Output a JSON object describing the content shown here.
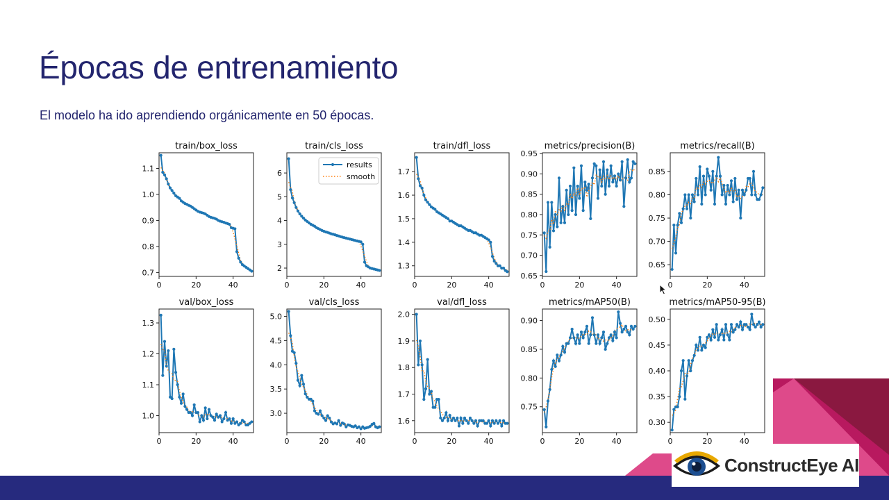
{
  "slide": {
    "title": "Épocas de entrenamiento",
    "subtitle": "El modelo ha ido aprendiendo orgánicamente en 50 épocas."
  },
  "logo": {
    "text": "ConstructEye AI",
    "icon": "eye-icon"
  },
  "colors": {
    "series": "#1f77b4",
    "smooth": "#ff7f0e",
    "title": "#23256e",
    "bar": "#262a7e",
    "magenta": "#b8195f",
    "pink": "#de4a8a",
    "dark_red": "#8a1840"
  },
  "chart_data": [
    {
      "type": "line",
      "title": "train/box_loss",
      "xlim": [
        0,
        51
      ],
      "ylim": [
        0.685,
        1.16
      ],
      "xticks": [
        0,
        20,
        40
      ],
      "yticks": [
        0.7,
        0.8,
        0.9,
        1.0,
        1.1
      ],
      "ytick_labels": [
        "0.7",
        "0.8",
        "0.9",
        "1.0",
        "1.1"
      ],
      "legend": null,
      "series": [
        {
          "name": "results",
          "values": [
            1.15,
            1.085,
            1.075,
            1.06,
            1.04,
            1.025,
            1.015,
            1.005,
            0.995,
            0.99,
            0.985,
            0.975,
            0.97,
            0.965,
            0.962,
            0.958,
            0.955,
            0.95,
            0.945,
            0.94,
            0.935,
            0.932,
            0.93,
            0.928,
            0.925,
            0.92,
            0.915,
            0.912,
            0.91,
            0.908,
            0.905,
            0.9,
            0.897,
            0.895,
            0.893,
            0.89,
            0.888,
            0.885,
            0.872,
            0.87,
            0.868,
            0.78,
            0.755,
            0.74,
            0.73,
            0.725,
            0.72,
            0.715,
            0.71,
            0.705
          ]
        }
      ]
    },
    {
      "type": "line",
      "title": "train/cls_loss",
      "xlim": [
        0,
        51
      ],
      "ylim": [
        1.65,
        6.85
      ],
      "xticks": [
        0,
        20,
        40
      ],
      "yticks": [
        2,
        3,
        4,
        5,
        6
      ],
      "ytick_labels": [
        "2",
        "3",
        "4",
        "5",
        "6"
      ],
      "legend": {
        "results": "results",
        "smooth": "smooth"
      },
      "series": [
        {
          "name": "results",
          "values": [
            6.6,
            5.3,
            4.95,
            4.75,
            4.55,
            4.4,
            4.28,
            4.18,
            4.1,
            4.02,
            3.96,
            3.9,
            3.84,
            3.8,
            3.76,
            3.7,
            3.66,
            3.62,
            3.58,
            3.55,
            3.52,
            3.5,
            3.47,
            3.44,
            3.42,
            3.4,
            3.37,
            3.35,
            3.32,
            3.3,
            3.28,
            3.26,
            3.24,
            3.22,
            3.2,
            3.18,
            3.16,
            3.14,
            3.12,
            3.1,
            3.0,
            2.25,
            2.1,
            2.05,
            2.0,
            1.98,
            1.96,
            1.94,
            1.92,
            1.9
          ]
        }
      ]
    },
    {
      "type": "line",
      "title": "train/dfl_loss",
      "xlim": [
        0,
        51
      ],
      "ylim": [
        1.255,
        1.78
      ],
      "xticks": [
        0,
        20,
        40
      ],
      "yticks": [
        1.3,
        1.4,
        1.5,
        1.6,
        1.7
      ],
      "ytick_labels": [
        "1.3",
        "1.4",
        "1.5",
        "1.6",
        "1.7"
      ],
      "legend": null,
      "series": [
        {
          "name": "results",
          "values": [
            1.76,
            1.67,
            1.64,
            1.63,
            1.6,
            1.58,
            1.57,
            1.56,
            1.55,
            1.545,
            1.54,
            1.53,
            1.525,
            1.52,
            1.515,
            1.51,
            1.505,
            1.5,
            1.49,
            1.49,
            1.485,
            1.48,
            1.475,
            1.47,
            1.47,
            1.465,
            1.46,
            1.455,
            1.45,
            1.45,
            1.445,
            1.44,
            1.44,
            1.435,
            1.43,
            1.43,
            1.425,
            1.42,
            1.415,
            1.41,
            1.4,
            1.34,
            1.32,
            1.31,
            1.3,
            1.3,
            1.29,
            1.29,
            1.28,
            1.275
          ]
        }
      ]
    },
    {
      "type": "line",
      "title": "metrics/precision(B)",
      "xlim": [
        0,
        51
      ],
      "ylim": [
        0.648,
        0.952
      ],
      "xticks": [
        0,
        20,
        40
      ],
      "yticks": [
        0.65,
        0.7,
        0.75,
        0.8,
        0.85,
        0.9,
        0.95
      ],
      "ytick_labels": [
        "0.65",
        "0.70",
        "0.75",
        "0.80",
        "0.85",
        "0.90",
        "0.95"
      ],
      "legend": null,
      "series": [
        {
          "name": "results",
          "values": [
            0.755,
            0.66,
            0.83,
            0.72,
            0.83,
            0.76,
            0.8,
            0.77,
            0.89,
            0.78,
            0.82,
            0.78,
            0.86,
            0.8,
            0.87,
            0.81,
            0.915,
            0.8,
            0.87,
            0.84,
            0.92,
            0.81,
            0.88,
            0.86,
            0.875,
            0.79,
            0.89,
            0.925,
            0.92,
            0.84,
            0.91,
            0.87,
            0.93,
            0.85,
            0.91,
            0.87,
            0.92,
            0.88,
            0.895,
            0.87,
            0.9,
            0.885,
            0.93,
            0.82,
            0.89,
            0.935,
            0.88,
            0.89,
            0.93,
            0.925
          ]
        }
      ]
    },
    {
      "type": "line",
      "title": "metrics/recall(B)",
      "xlim": [
        0,
        51
      ],
      "ylim": [
        0.625,
        0.89
      ],
      "xticks": [
        0,
        20,
        40
      ],
      "yticks": [
        0.65,
        0.7,
        0.75,
        0.8,
        0.85
      ],
      "ytick_labels": [
        "0.65",
        "0.70",
        "0.75",
        "0.80",
        "0.85"
      ],
      "legend": null,
      "series": [
        {
          "name": "results",
          "values": [
            0.64,
            0.735,
            0.675,
            0.735,
            0.76,
            0.74,
            0.77,
            0.8,
            0.77,
            0.8,
            0.75,
            0.8,
            0.785,
            0.835,
            0.8,
            0.86,
            0.78,
            0.84,
            0.8,
            0.855,
            0.84,
            0.81,
            0.85,
            0.78,
            0.84,
            0.88,
            0.84,
            0.8,
            0.82,
            0.78,
            0.82,
            0.8,
            0.83,
            0.785,
            0.835,
            0.79,
            0.81,
            0.75,
            0.81,
            0.8,
            0.81,
            0.835,
            0.835,
            0.8,
            0.85,
            0.8,
            0.79,
            0.79,
            0.8,
            0.815
          ]
        }
      ]
    },
    {
      "type": "line",
      "title": "val/box_loss",
      "xlim": [
        0,
        51
      ],
      "ylim": [
        0.945,
        1.345
      ],
      "xticks": [
        0,
        20,
        40
      ],
      "yticks": [
        1.0,
        1.1,
        1.2,
        1.3
      ],
      "ytick_labels": [
        "1.0",
        "1.1",
        "1.2",
        "1.3"
      ],
      "legend": null,
      "series": [
        {
          "name": "results",
          "values": [
            1.325,
            1.13,
            1.24,
            1.16,
            1.21,
            1.06,
            1.055,
            1.215,
            1.14,
            1.1,
            1.06,
            1.04,
            1.07,
            1.03,
            1.02,
            1.01,
            1.01,
            1.0,
            1.035,
            1.01,
            1.01,
            0.98,
            1.0,
            0.985,
            1.025,
            0.99,
            1.02,
            1.0,
            0.995,
            0.985,
            1.005,
            0.995,
            1.0,
            0.98,
            0.99,
            1.01,
            0.985,
            0.99,
            0.975,
            0.99,
            0.975,
            0.98,
            0.97,
            0.975,
            0.985,
            0.98,
            0.97,
            0.97,
            0.975,
            0.98
          ]
        }
      ]
    },
    {
      "type": "line",
      "title": "val/cls_loss",
      "xlim": [
        0,
        51
      ],
      "ylim": [
        2.6,
        5.15
      ],
      "xticks": [
        0,
        20,
        40
      ],
      "yticks": [
        3.0,
        3.5,
        4.0,
        4.5,
        5.0
      ],
      "ytick_labels": [
        "3.0",
        "3.5",
        "4.0",
        "4.5",
        "5.0"
      ],
      "legend": null,
      "series": [
        {
          "name": "results",
          "values": [
            5.1,
            4.6,
            4.28,
            4.25,
            4.03,
            3.68,
            3.57,
            3.78,
            3.6,
            3.4,
            3.33,
            3.29,
            3.29,
            3.25,
            3.05,
            3.0,
            2.98,
            3.05,
            2.95,
            2.9,
            2.85,
            2.95,
            2.9,
            2.82,
            2.78,
            2.8,
            2.78,
            2.85,
            2.75,
            2.8,
            2.78,
            2.72,
            2.76,
            2.75,
            2.73,
            2.72,
            2.74,
            2.7,
            2.72,
            2.68,
            2.72,
            2.69,
            2.7,
            2.71,
            2.73,
            2.77,
            2.79,
            2.72,
            2.7,
            2.72
          ]
        }
      ]
    },
    {
      "type": "line",
      "title": "val/dfl_loss",
      "xlim": [
        0,
        51
      ],
      "ylim": [
        1.555,
        2.02
      ],
      "xticks": [
        0,
        20,
        40
      ],
      "yticks": [
        1.6,
        1.7,
        1.8,
        1.9,
        2.0
      ],
      "ytick_labels": [
        "1.6",
        "1.7",
        "1.8",
        "1.9",
        "2.0"
      ],
      "legend": null,
      "series": [
        {
          "name": "results",
          "values": [
            2.0,
            1.81,
            1.9,
            1.81,
            1.68,
            1.72,
            1.83,
            1.7,
            1.71,
            1.65,
            1.65,
            1.68,
            1.68,
            1.61,
            1.6,
            1.61,
            1.63,
            1.6,
            1.62,
            1.6,
            1.61,
            1.6,
            1.61,
            1.58,
            1.61,
            1.59,
            1.61,
            1.6,
            1.59,
            1.61,
            1.6,
            1.59,
            1.6,
            1.58,
            1.6,
            1.6,
            1.6,
            1.59,
            1.59,
            1.6,
            1.58,
            1.6,
            1.59,
            1.6,
            1.59,
            1.6,
            1.58,
            1.6,
            1.59,
            1.59
          ]
        }
      ]
    },
    {
      "type": "line",
      "title": "metrics/mAP50(B)",
      "xlim": [
        0,
        51
      ],
      "ylim": [
        0.705,
        0.92
      ],
      "xticks": [
        0,
        20,
        40
      ],
      "yticks": [
        0.75,
        0.8,
        0.85,
        0.9
      ],
      "ytick_labels": [
        "0.75",
        "0.80",
        "0.85",
        "0.90"
      ],
      "legend": null,
      "series": [
        {
          "name": "results",
          "values": [
            0.745,
            0.715,
            0.76,
            0.78,
            0.815,
            0.83,
            0.82,
            0.84,
            0.83,
            0.84,
            0.855,
            0.845,
            0.86,
            0.86,
            0.87,
            0.885,
            0.87,
            0.86,
            0.875,
            0.86,
            0.88,
            0.87,
            0.88,
            0.89,
            0.86,
            0.875,
            0.905,
            0.875,
            0.86,
            0.875,
            0.86,
            0.87,
            0.88,
            0.85,
            0.86,
            0.87,
            0.875,
            0.865,
            0.88,
            0.87,
            0.915,
            0.895,
            0.88,
            0.885,
            0.89,
            0.88,
            0.875,
            0.89,
            0.885,
            0.89
          ]
        }
      ]
    },
    {
      "type": "line",
      "title": "metrics/mAP50-95(B)",
      "xlim": [
        0,
        51
      ],
      "ylim": [
        0.28,
        0.52
      ],
      "xticks": [
        0,
        20,
        40
      ],
      "yticks": [
        0.3,
        0.35,
        0.4,
        0.45,
        0.5
      ],
      "ytick_labels": [
        "0.30",
        "0.35",
        "0.40",
        "0.45",
        "0.50"
      ],
      "legend": null,
      "series": [
        {
          "name": "results",
          "values": [
            0.285,
            0.325,
            0.33,
            0.33,
            0.35,
            0.4,
            0.42,
            0.345,
            0.39,
            0.42,
            0.4,
            0.42,
            0.43,
            0.45,
            0.44,
            0.465,
            0.44,
            0.45,
            0.445,
            0.465,
            0.47,
            0.46,
            0.48,
            0.465,
            0.49,
            0.46,
            0.47,
            0.48,
            0.46,
            0.49,
            0.47,
            0.46,
            0.49,
            0.475,
            0.48,
            0.49,
            0.485,
            0.495,
            0.48,
            0.49,
            0.49,
            0.485,
            0.48,
            0.51,
            0.49,
            0.485,
            0.49,
            0.495,
            0.485,
            0.49
          ]
        }
      ]
    }
  ]
}
